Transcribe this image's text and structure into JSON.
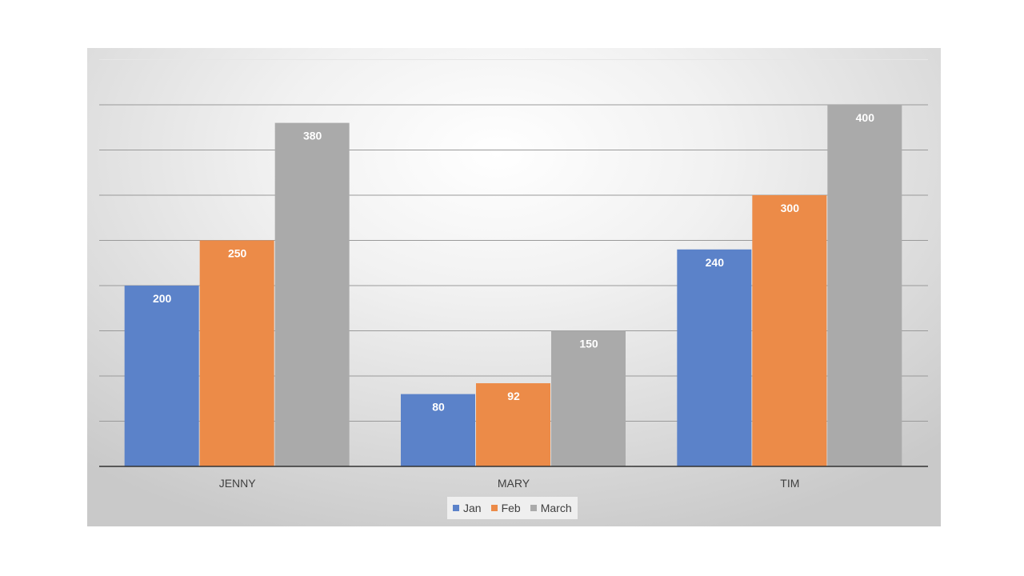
{
  "chart_data": {
    "type": "bar",
    "title": "",
    "xlabel": "",
    "ylabel": "",
    "categories": [
      "JENNY",
      "MARY",
      "TIM"
    ],
    "series": [
      {
        "name": "Jan",
        "values": [
          200,
          80,
          240
        ],
        "color": "#5b82c9"
      },
      {
        "name": "Feb",
        "values": [
          250,
          92,
          300
        ],
        "color": "#ec8b48"
      },
      {
        "name": "March",
        "values": [
          380,
          150,
          400
        ],
        "color": "#aaaaaa"
      }
    ],
    "ylim": [
      0,
      400
    ],
    "gridlines": true,
    "legend_position": "bottom",
    "data_labels": true
  }
}
